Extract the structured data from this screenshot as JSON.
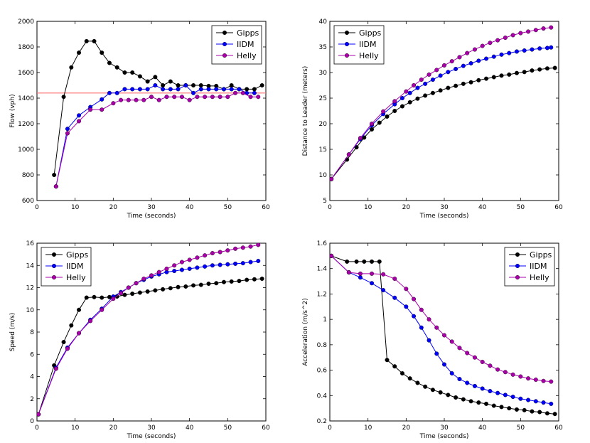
{
  "chart_data": [
    {
      "type": "line",
      "xlabel": "Time (seconds)",
      "ylabel": "Flow (vph)",
      "xlim": [
        0,
        60
      ],
      "ylim": [
        600,
        2000
      ],
      "xticks": [
        0,
        10,
        20,
        30,
        40,
        50,
        60
      ],
      "yticks": [
        600,
        800,
        1000,
        1200,
        1400,
        1600,
        1800,
        2000
      ],
      "legend_position": "top-right",
      "hline": {
        "y": 1440,
        "color": "#ff6e6e"
      },
      "series": [
        {
          "name": "Gipps",
          "color": "#000000",
          "x": [
            4.5,
            7,
            9,
            11,
            13,
            15,
            17,
            19,
            21,
            23,
            25,
            27,
            29,
            31,
            33,
            35,
            37,
            39,
            41,
            43,
            45,
            47,
            49,
            51,
            53,
            55,
            57,
            59
          ],
          "y": [
            800,
            1410,
            1640,
            1755,
            1845,
            1845,
            1755,
            1675,
            1640,
            1600,
            1600,
            1570,
            1530,
            1565,
            1500,
            1530,
            1500,
            1500,
            1500,
            1500,
            1495,
            1495,
            1470,
            1500,
            1470,
            1470,
            1470,
            1500
          ]
        },
        {
          "name": "IIDM",
          "color": "#0000ff",
          "x": [
            5,
            8,
            11,
            14,
            17,
            19,
            21,
            23,
            25,
            27,
            29,
            31,
            33,
            35,
            37,
            39,
            41,
            43,
            45,
            47,
            49,
            51,
            53,
            55,
            57
          ],
          "y": [
            710,
            1160,
            1265,
            1330,
            1390,
            1440,
            1440,
            1470,
            1470,
            1470,
            1470,
            1500,
            1470,
            1470,
            1470,
            1500,
            1440,
            1470,
            1470,
            1470,
            1470,
            1470,
            1470,
            1440,
            1440
          ]
        },
        {
          "name": "Helly",
          "color": "#aa00aa",
          "x": [
            5,
            8,
            11,
            14,
            17,
            20,
            22,
            24,
            26,
            28,
            30,
            32,
            34,
            36,
            38,
            40,
            42,
            44,
            46,
            48,
            50,
            52,
            54,
            56,
            58
          ],
          "y": [
            710,
            1125,
            1220,
            1310,
            1310,
            1360,
            1385,
            1385,
            1385,
            1385,
            1410,
            1385,
            1410,
            1410,
            1410,
            1385,
            1410,
            1410,
            1410,
            1410,
            1410,
            1440,
            1440,
            1410,
            1410
          ]
        }
      ]
    },
    {
      "type": "line",
      "xlabel": "Time (seconds)",
      "ylabel": "Distance to Leader (meters)",
      "xlim": [
        0,
        60
      ],
      "ylim": [
        5,
        40
      ],
      "xticks": [
        0,
        10,
        20,
        30,
        40,
        50,
        60
      ],
      "yticks": [
        5,
        10,
        15,
        20,
        25,
        30,
        35,
        40
      ],
      "legend_position": "top-left",
      "series": [
        {
          "name": "Gipps",
          "color": "#000000",
          "x": [
            0.4,
            4.5,
            7,
            9,
            11,
            13,
            15,
            17,
            19,
            21,
            23,
            25,
            27,
            29,
            31,
            33,
            35,
            37,
            39,
            41,
            43,
            45,
            47,
            49,
            51,
            53,
            55,
            57,
            59
          ],
          "y": [
            9.2,
            13.0,
            15.4,
            17.3,
            18.9,
            20.2,
            21.4,
            22.5,
            23.4,
            24.2,
            24.9,
            25.5,
            26.0,
            26.5,
            27.0,
            27.4,
            27.8,
            28.1,
            28.5,
            28.8,
            29.1,
            29.4,
            29.6,
            29.9,
            30.1,
            30.4,
            30.6,
            30.8,
            30.9
          ]
        },
        {
          "name": "IIDM",
          "color": "#0000ff",
          "x": [
            0.4,
            5,
            8,
            11,
            14,
            17,
            19,
            21,
            23,
            25,
            27,
            29,
            31,
            33,
            35,
            37,
            39,
            41,
            43,
            45,
            47,
            49,
            51,
            53,
            55,
            57,
            58
          ],
          "y": [
            9.2,
            14.0,
            17.0,
            19.7,
            21.9,
            23.8,
            25.0,
            26.0,
            27.0,
            27.8,
            28.6,
            29.4,
            30.1,
            30.7,
            31.3,
            31.8,
            32.3,
            32.7,
            33.1,
            33.5,
            33.8,
            34.1,
            34.3,
            34.5,
            34.7,
            34.8,
            34.9
          ]
        },
        {
          "name": "Helly",
          "color": "#aa00aa",
          "x": [
            0.4,
            5,
            8,
            11,
            14,
            17,
            20,
            22,
            24,
            26,
            28,
            30,
            32,
            34,
            36,
            38,
            40,
            42,
            44,
            46,
            48,
            50,
            52,
            54,
            56,
            58
          ],
          "y": [
            9.2,
            14.0,
            17.2,
            20.0,
            22.4,
            24.4,
            26.3,
            27.5,
            28.6,
            29.6,
            30.5,
            31.4,
            32.2,
            33.0,
            33.8,
            34.5,
            35.2,
            35.8,
            36.3,
            36.8,
            37.3,
            37.7,
            38.0,
            38.3,
            38.6,
            38.8
          ]
        }
      ]
    },
    {
      "type": "line",
      "xlabel": "Time (seconds)",
      "ylabel": "Speed (m/s)",
      "xlim": [
        0,
        60
      ],
      "ylim": [
        0,
        16
      ],
      "xticks": [
        0,
        10,
        20,
        30,
        40,
        50,
        60
      ],
      "yticks": [
        0,
        2,
        4,
        6,
        8,
        10,
        12,
        14,
        16
      ],
      "legend_position": "top-left",
      "series": [
        {
          "name": "Gipps",
          "color": "#000000",
          "x": [
            0.4,
            4.5,
            7,
            9,
            11,
            13,
            15,
            17,
            19,
            21,
            23,
            25,
            27,
            29,
            31,
            33,
            35,
            37,
            39,
            41,
            43,
            45,
            47,
            49,
            51,
            53,
            55,
            57,
            59
          ],
          "y": [
            0.6,
            5.0,
            7.1,
            8.6,
            10.0,
            11.1,
            11.15,
            11.1,
            11.15,
            11.2,
            11.35,
            11.45,
            11.55,
            11.65,
            11.75,
            11.85,
            11.95,
            12.05,
            12.1,
            12.2,
            12.25,
            12.35,
            12.4,
            12.5,
            12.55,
            12.6,
            12.7,
            12.75,
            12.8
          ]
        },
        {
          "name": "IIDM",
          "color": "#0000ff",
          "x": [
            0.4,
            5,
            8,
            11,
            14,
            17,
            20,
            22,
            24,
            26,
            28,
            30,
            32,
            34,
            36,
            38,
            40,
            42,
            44,
            46,
            48,
            50,
            52,
            54,
            56,
            58
          ],
          "y": [
            0.6,
            4.8,
            6.6,
            7.9,
            9.1,
            10.1,
            11.2,
            11.6,
            12.0,
            12.4,
            12.7,
            13.0,
            13.2,
            13.4,
            13.5,
            13.6,
            13.7,
            13.8,
            13.9,
            14.0,
            14.05,
            14.1,
            14.15,
            14.2,
            14.3,
            14.4
          ]
        },
        {
          "name": "Helly",
          "color": "#aa00aa",
          "x": [
            0.4,
            5,
            8,
            11,
            14,
            17,
            20,
            22,
            24,
            26,
            28,
            30,
            32,
            34,
            36,
            38,
            40,
            42,
            44,
            46,
            48,
            50,
            52,
            54,
            56,
            58
          ],
          "y": [
            0.6,
            4.7,
            6.5,
            7.9,
            9.0,
            10.0,
            11.0,
            11.5,
            12.0,
            12.4,
            12.8,
            13.1,
            13.4,
            13.7,
            14.0,
            14.3,
            14.5,
            14.7,
            14.9,
            15.1,
            15.2,
            15.35,
            15.5,
            15.6,
            15.7,
            15.85
          ]
        }
      ]
    },
    {
      "type": "line",
      "xlabel": "Time (seconds)",
      "ylabel": "Acceleration (m/s^2)",
      "xlim": [
        0,
        60
      ],
      "ylim": [
        0.2,
        1.6
      ],
      "xticks": [
        0,
        10,
        20,
        30,
        40,
        50,
        60
      ],
      "yticks": [
        0.2,
        0.4,
        0.6,
        0.8,
        1.0,
        1.2,
        1.4,
        1.6
      ],
      "legend_position": "top-right",
      "series": [
        {
          "name": "Gipps",
          "color": "#000000",
          "x": [
            0.4,
            4.5,
            7,
            9,
            11,
            13,
            15,
            17,
            19,
            21,
            23,
            25,
            27,
            29,
            31,
            33,
            35,
            37,
            39,
            41,
            43,
            45,
            47,
            49,
            51,
            53,
            55,
            57,
            59
          ],
          "y": [
            1.5,
            1.455,
            1.455,
            1.455,
            1.455,
            1.455,
            0.68,
            0.63,
            0.575,
            0.535,
            0.5,
            0.47,
            0.445,
            0.425,
            0.405,
            0.385,
            0.37,
            0.355,
            0.345,
            0.335,
            0.32,
            0.31,
            0.3,
            0.29,
            0.285,
            0.275,
            0.27,
            0.26,
            0.255
          ]
        },
        {
          "name": "IIDM",
          "color": "#0000ff",
          "x": [
            0.4,
            5,
            8,
            11,
            14,
            17,
            20,
            22,
            24,
            26,
            28,
            30,
            32,
            34,
            36,
            38,
            40,
            42,
            44,
            46,
            48,
            50,
            52,
            54,
            56,
            58
          ],
          "y": [
            1.5,
            1.37,
            1.33,
            1.285,
            1.23,
            1.17,
            1.1,
            1.025,
            0.935,
            0.835,
            0.73,
            0.645,
            0.575,
            0.53,
            0.5,
            0.475,
            0.455,
            0.435,
            0.42,
            0.405,
            0.39,
            0.375,
            0.365,
            0.355,
            0.345,
            0.335
          ]
        },
        {
          "name": "Helly",
          "color": "#aa00aa",
          "x": [
            0.4,
            5,
            8,
            11,
            14,
            17,
            20,
            22,
            24,
            26,
            28,
            30,
            32,
            34,
            36,
            38,
            40,
            42,
            44,
            46,
            48,
            50,
            52,
            54,
            56,
            58
          ],
          "y": [
            1.5,
            1.37,
            1.36,
            1.36,
            1.355,
            1.32,
            1.24,
            1.16,
            1.075,
            1.0,
            0.935,
            0.875,
            0.825,
            0.775,
            0.735,
            0.7,
            0.665,
            0.635,
            0.605,
            0.585,
            0.565,
            0.55,
            0.535,
            0.525,
            0.515,
            0.51
          ]
        }
      ]
    }
  ]
}
